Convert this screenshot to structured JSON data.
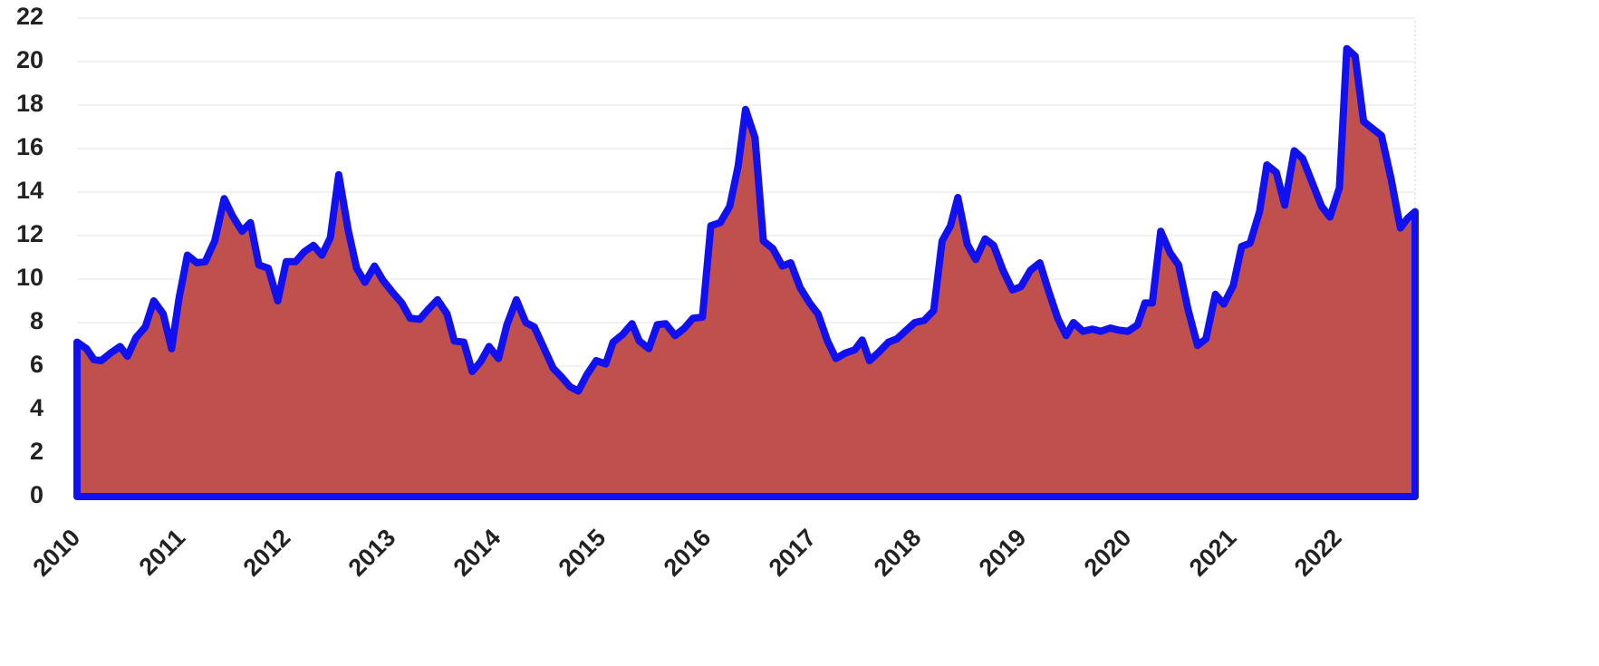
{
  "chart_data": {
    "type": "area",
    "color": "#c0504d",
    "line_color": "#1010f0",
    "grid": true,
    "x": [
      2010.0,
      2010.09,
      2010.16,
      2010.23,
      2010.32,
      2010.41,
      2010.48,
      2010.56,
      2010.65,
      2010.73,
      2010.82,
      2010.9,
      2010.97,
      2011.05,
      2011.14,
      2011.22,
      2011.31,
      2011.4,
      2011.48,
      2011.57,
      2011.65,
      2011.73,
      2011.82,
      2011.91,
      2011.99,
      2012.08,
      2012.16,
      2012.25,
      2012.33,
      2012.41,
      2012.49,
      2012.58,
      2012.66,
      2012.74,
      2012.83,
      2012.91,
      2013.0,
      2013.09,
      2013.17,
      2013.26,
      2013.34,
      2013.43,
      2013.52,
      2013.59,
      2013.68,
      2013.76,
      2013.84,
      2013.92,
      2014.01,
      2014.09,
      2014.18,
      2014.27,
      2014.35,
      2014.44,
      2014.53,
      2014.61,
      2014.69,
      2014.77,
      2014.85,
      2014.94,
      2015.03,
      2015.1,
      2015.19,
      2015.28,
      2015.35,
      2015.44,
      2015.52,
      2015.6,
      2015.69,
      2015.78,
      2015.86,
      2015.95,
      2016.03,
      2016.12,
      2016.21,
      2016.29,
      2016.36,
      2016.45,
      2016.53,
      2016.62,
      2016.71,
      2016.79,
      2016.88,
      2016.97,
      2017.05,
      2017.14,
      2017.22,
      2017.31,
      2017.4,
      2017.47,
      2017.54,
      2017.63,
      2017.72,
      2017.8,
      2017.89,
      2017.97,
      2018.06,
      2018.15,
      2018.23,
      2018.31,
      2018.38,
      2018.47,
      2018.55,
      2018.64,
      2018.72,
      2018.81,
      2018.9,
      2018.98,
      2019.07,
      2019.16,
      2019.24,
      2019.33,
      2019.41,
      2019.48,
      2019.57,
      2019.66,
      2019.74,
      2019.83,
      2019.91,
      2020.0,
      2020.09,
      2020.16,
      2020.23,
      2020.31,
      2020.4,
      2020.48,
      2020.57,
      2020.66,
      2020.74,
      2020.83,
      2020.91,
      2021.0,
      2021.08,
      2021.16,
      2021.25,
      2021.32,
      2021.41,
      2021.49,
      2021.58,
      2021.66,
      2021.75,
      2021.84,
      2021.92,
      2022.01,
      2022.08,
      2022.16,
      2022.24,
      2022.33,
      2022.41,
      2022.5,
      2022.59,
      2022.66,
      2022.73
    ],
    "values": [
      7.1,
      6.8,
      6.3,
      6.25,
      6.6,
      6.9,
      6.45,
      7.3,
      7.8,
      9.0,
      8.4,
      6.8,
      9.1,
      11.1,
      10.75,
      10.8,
      11.75,
      13.7,
      12.9,
      12.2,
      12.6,
      10.65,
      10.5,
      9.0,
      10.8,
      10.8,
      11.25,
      11.55,
      11.1,
      11.9,
      14.8,
      12.25,
      10.5,
      9.85,
      10.6,
      9.95,
      9.4,
      8.9,
      8.2,
      8.15,
      8.6,
      9.05,
      8.4,
      7.15,
      7.1,
      5.75,
      6.2,
      6.9,
      6.35,
      7.9,
      9.05,
      8.0,
      7.8,
      6.85,
      5.9,
      5.5,
      5.05,
      4.85,
      5.6,
      6.25,
      6.1,
      7.1,
      7.45,
      7.95,
      7.15,
      6.8,
      7.9,
      7.95,
      7.4,
      7.75,
      8.2,
      8.25,
      12.45,
      12.6,
      13.35,
      15.2,
      17.8,
      16.5,
      11.75,
      11.4,
      10.6,
      10.75,
      9.6,
      8.9,
      8.4,
      7.15,
      6.35,
      6.6,
      6.75,
      7.2,
      6.25,
      6.65,
      7.1,
      7.25,
      7.65,
      8.0,
      8.1,
      8.55,
      11.75,
      12.45,
      13.75,
      11.6,
      10.9,
      11.85,
      11.55,
      10.4,
      9.5,
      9.65,
      10.4,
      10.75,
      9.5,
      8.2,
      7.4,
      8.0,
      7.6,
      7.7,
      7.6,
      7.75,
      7.65,
      7.6,
      7.9,
      8.9,
      8.9,
      12.2,
      11.2,
      10.65,
      8.6,
      6.95,
      7.25,
      9.3,
      8.85,
      9.7,
      11.5,
      11.65,
      13.1,
      15.25,
      14.9,
      13.4,
      15.9,
      15.55,
      14.45,
      13.35,
      12.85,
      14.2,
      20.6,
      20.25,
      17.25,
      16.9,
      16.6,
      14.65,
      12.35,
      12.8,
      13.1
    ],
    "xlim": [
      2010,
      2022.73
    ],
    "xticks": [
      2010,
      2011,
      2012,
      2013,
      2014,
      2015,
      2016,
      2017,
      2018,
      2019,
      2020,
      2021,
      2022
    ],
    "ylim": [
      0,
      22
    ],
    "yticks": [
      0,
      2,
      4,
      6,
      8,
      10,
      12,
      14,
      16,
      18,
      20,
      22
    ]
  }
}
